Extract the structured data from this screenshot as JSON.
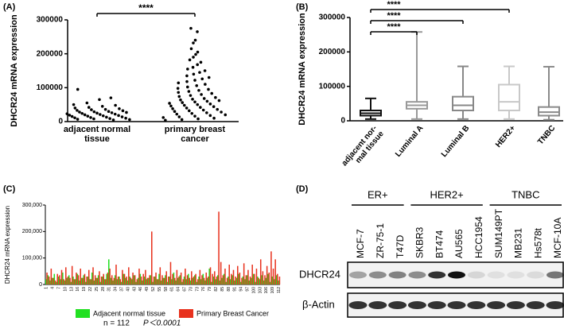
{
  "chart_data": [
    {
      "type": "dot",
      "panel_label": "(A)",
      "y_label": "DHCR24 mRNA expression",
      "significance": "****",
      "ylim": [
        0,
        300000
      ],
      "yticks": [
        0,
        100000,
        200000,
        300000
      ],
      "color": "#000000",
      "categories": [
        "adjacent normal\ntissue",
        "primary breast\ncancer"
      ],
      "groups": [
        {
          "values": [
            95000,
            70000,
            65000,
            55000,
            50000,
            48000,
            45000,
            42000,
            40000,
            38000,
            36000,
            35000,
            33000,
            32000,
            30000,
            29000,
            28000,
            27000,
            26000,
            25000,
            24000,
            23000,
            22000,
            21000,
            20000,
            19000,
            18000,
            17000,
            16000,
            15000,
            14000,
            13000,
            12000,
            11000,
            10000,
            9000,
            8000,
            7000,
            6000,
            5000
          ]
        },
        {
          "values": [
            275000,
            265000,
            240000,
            232000,
            215000,
            205000,
            198000,
            190000,
            182000,
            175000,
            168000,
            160000,
            155000,
            150000,
            145000,
            140000,
            135000,
            130000,
            126000,
            122000,
            118000,
            114000,
            110000,
            106000,
            102000,
            98000,
            95000,
            92000,
            89000,
            86000,
            83000,
            80000,
            77000,
            74000,
            71000,
            68000,
            66000,
            64000,
            62000,
            60000,
            58000,
            56000,
            54000,
            52000,
            50000,
            48000,
            46000,
            44000,
            42000,
            40000,
            38000,
            36000,
            34000,
            32000,
            30000,
            28000,
            26000,
            24000,
            22000,
            20000,
            18000,
            16000,
            14000,
            12000,
            10000,
            8000,
            6000,
            4000
          ]
        }
      ]
    },
    {
      "type": "box",
      "panel_label": "(B)",
      "y_label": "DHCR24 mRNA expression",
      "significance": [
        "****",
        "****",
        "****"
      ],
      "ylim": [
        0,
        300000
      ],
      "yticks": [
        0,
        100000,
        200000,
        300000
      ],
      "categories": [
        "adjacent nor-\nmal tissue",
        "Luminal A",
        "Luminal B",
        "HER2+",
        "TNBC"
      ],
      "colors": [
        "#111111",
        "#999999",
        "#888888",
        "#c8c8c8",
        "#8a8a8a"
      ],
      "boxes": [
        {
          "min": 5000,
          "q1": 15000,
          "median": 22000,
          "q3": 30000,
          "max": 65000
        },
        {
          "min": 5000,
          "q1": 35000,
          "median": 45000,
          "q3": 55000,
          "max": 258000
        },
        {
          "min": 5000,
          "q1": 30000,
          "median": 45000,
          "q3": 70000,
          "max": 158000
        },
        {
          "min": 5000,
          "q1": 30000,
          "median": 55000,
          "q3": 105000,
          "max": 158000
        },
        {
          "min": 3000,
          "q1": 15000,
          "median": 25000,
          "q3": 40000,
          "max": 157000
        }
      ]
    },
    {
      "type": "bar",
      "panel_label": "(C)",
      "y_label": "DHCR24 mRNA expression",
      "ylim": [
        0,
        300000
      ],
      "yticks": [
        0,
        {
          "value": 100000,
          "label": "100,000"
        },
        {
          "value": 200000,
          "label": "200,000"
        },
        {
          "value": 300000,
          "label": "300,000"
        }
      ],
      "annotations": [
        "n = 112",
        "P＜0.0001"
      ],
      "categories": [
        "1",
        null,
        null,
        "4",
        null,
        null,
        "7",
        null,
        null,
        "10",
        null,
        null,
        "13",
        null,
        null,
        "16",
        null,
        null,
        "19",
        null,
        null,
        "22",
        null,
        null,
        "25",
        null,
        null,
        "28",
        null,
        null,
        "31",
        null,
        null,
        "34",
        null,
        null,
        "37",
        null,
        null,
        "40",
        null,
        null,
        "43",
        null,
        null,
        "46",
        null,
        null,
        "49",
        null,
        null,
        "52",
        null,
        null,
        "55",
        null,
        null,
        "58",
        null,
        null,
        "61",
        null,
        null,
        "64",
        null,
        null,
        "67",
        null,
        null,
        "70",
        null,
        null,
        "73",
        null,
        null,
        "76",
        null,
        null,
        "79",
        null,
        null,
        "82",
        null,
        null,
        "85",
        null,
        null,
        "88",
        null,
        null,
        "91",
        null,
        null,
        "94",
        null,
        null,
        "97",
        null,
        null,
        "100",
        null,
        null,
        "103",
        null,
        null,
        "106",
        null,
        null,
        "109",
        null,
        null,
        "112"
      ],
      "series": [
        {
          "name": "Adjacent normal tissue",
          "color": "#22e022",
          "values": [
            20000,
            35000,
            15000,
            25000,
            40000,
            10000,
            30000,
            20000,
            45000,
            15000,
            25000,
            35000,
            10000,
            30000,
            20000,
            40000,
            15000,
            25000,
            35000,
            10000,
            30000,
            20000,
            45000,
            15000,
            25000,
            35000,
            10000,
            30000,
            20000,
            40000,
            95000,
            25000,
            15000,
            35000,
            20000,
            30000,
            10000,
            40000,
            25000,
            15000,
            30000,
            20000,
            35000,
            10000,
            25000,
            40000,
            15000,
            30000,
            20000,
            25000,
            35000,
            10000,
            30000,
            20000,
            40000,
            15000,
            25000,
            35000,
            10000,
            30000,
            20000,
            45000,
            15000,
            25000,
            35000,
            10000,
            30000,
            20000,
            40000,
            15000,
            25000,
            35000,
            10000,
            30000,
            20000,
            40000,
            15000,
            25000,
            60000,
            10000,
            30000,
            20000,
            35000,
            15000,
            25000,
            40000,
            10000,
            30000,
            20000,
            35000,
            15000,
            25000,
            40000,
            10000,
            30000,
            20000,
            35000,
            15000,
            25000,
            40000,
            10000,
            30000,
            20000,
            35000,
            15000,
            25000,
            40000,
            10000,
            30000,
            20000,
            35000,
            15000
          ]
        },
        {
          "name": "Primary Breast Cancer",
          "color": "#e8321e",
          "values": [
            45000,
            30000,
            60000,
            25000,
            15000,
            40000,
            35000,
            55000,
            20000,
            65000,
            30000,
            25000,
            70000,
            20000,
            45000,
            35000,
            60000,
            25000,
            40000,
            30000,
            55000,
            20000,
            65000,
            35000,
            25000,
            50000,
            30000,
            40000,
            20000,
            45000,
            60000,
            35000,
            25000,
            75000,
            30000,
            20000,
            55000,
            40000,
            30000,
            65000,
            25000,
            45000,
            35000,
            20000,
            60000,
            30000,
            40000,
            55000,
            25000,
            35000,
            200000,
            30000,
            45000,
            20000,
            65000,
            35000,
            25000,
            50000,
            30000,
            85000,
            40000,
            25000,
            55000,
            30000,
            45000,
            20000,
            60000,
            35000,
            25000,
            50000,
            30000,
            40000,
            20000,
            55000,
            35000,
            25000,
            45000,
            30000,
            65000,
            40000,
            50000,
            30000,
            275000,
            85000,
            35000,
            60000,
            25000,
            75000,
            40000,
            55000,
            30000,
            70000,
            45000,
            25000,
            80000,
            35000,
            55000,
            30000,
            75000,
            40000,
            60000,
            25000,
            95000,
            50000,
            35000,
            70000,
            45000,
            125000,
            60000,
            95000,
            40000,
            30000
          ]
        }
      ]
    }
  ],
  "blot": {
    "panel_label": "(D)",
    "groups": [
      "ER+",
      "HER2+",
      "TNBC"
    ],
    "lanes": [
      "MCF-7",
      "ZR-75-1",
      "T47D",
      "SKBR3",
      "BT474",
      "AU565",
      "HCC1954",
      "SUM149PT",
      "MB231",
      "Hs578t",
      "MCF-10A"
    ],
    "rows": [
      "DHCR24",
      "β-Actin"
    ]
  }
}
